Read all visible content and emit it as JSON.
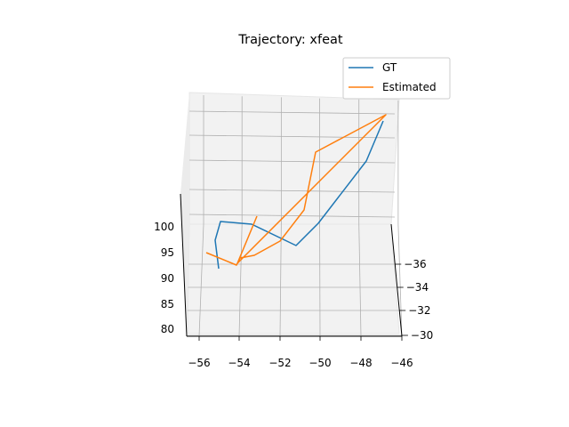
{
  "chart_data": {
    "type": "line",
    "title": "Trajectory: xfeat",
    "projection": "3d",
    "grid": true,
    "legend_position": "top-right",
    "axes": {
      "x": {
        "range": [
          -56.6,
          -45.9
        ],
        "ticks": [
          -56,
          -54,
          -52,
          -50,
          -48,
          -46
        ],
        "tick_labels": [
          "−56",
          "−54",
          "−52",
          "−50",
          "−48",
          "−46"
        ],
        "label": ""
      },
      "y": {
        "range": [
          -29.7,
          -37.1
        ],
        "ticks": [
          -30,
          -32,
          -34,
          -36
        ],
        "tick_labels": [
          "−30",
          "−32",
          "−34",
          "−36"
        ],
        "label": ""
      },
      "z": {
        "range": [
          78,
          103
        ],
        "ticks": [
          80,
          85,
          90,
          95,
          100
        ],
        "tick_labels": [
          "80",
          "85",
          "90",
          "95",
          "100"
        ],
        "label": ""
      }
    },
    "series": [
      {
        "name": "GT",
        "color": "#1f77b4",
        "points": [
          {
            "x": -55.1,
            "y": -35.2,
            "z": 95
          },
          {
            "x": -55.3,
            "y": -35.6,
            "z": 97
          },
          {
            "x": -55.0,
            "y": -36.4,
            "z": 100
          },
          {
            "x": -53.3,
            "y": -36.3,
            "z": 100
          },
          {
            "x": -51.1,
            "y": -35.7,
            "z": 97
          },
          {
            "x": -50.0,
            "y": -36.0,
            "z": 98.6
          },
          {
            "x": -47.9,
            "y": -36.2,
            "z": 103.5
          },
          {
            "x": -47.1,
            "y": -36.4,
            "z": 107.3
          }
        ]
      },
      {
        "name": "Estimated",
        "color": "#ff7f0e",
        "points": [
          {
            "x": -55.7,
            "y": -35.4,
            "z": 96
          },
          {
            "x": -54.1,
            "y": -35.0,
            "z": 95
          },
          {
            "x": -53.9,
            "y": -35.3,
            "z": 95.9
          },
          {
            "x": -53.3,
            "y": -35.3,
            "z": 95.9
          },
          {
            "x": -52.0,
            "y": -35.4,
            "z": 97
          },
          {
            "x": -50.8,
            "y": -36.0,
            "z": 99
          },
          {
            "x": -50.0,
            "y": -36.4,
            "z": 104.5
          },
          {
            "x": -46.8,
            "y": -36.7,
            "z": 107.8
          },
          {
            "x": -53.9,
            "y": -35.2,
            "z": 95.5
          },
          {
            "x": -53.0,
            "y": -36.0,
            "z": 100.2
          }
        ]
      }
    ]
  },
  "colors": {
    "pane_fill": "#f2f2f2",
    "grid": "#b0b0b0",
    "axis_line": "#000000"
  }
}
